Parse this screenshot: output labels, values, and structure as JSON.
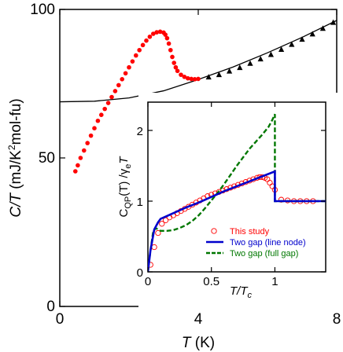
{
  "chart_data": [
    {
      "type": "scatter",
      "xlabel": {
        "main": "T",
        "unit": " (K)"
      },
      "ylabel": {
        "main": "C/T",
        "unit_pre": " (mJ/K",
        "unit_sup": "2",
        "unit_post": "mol-fu)"
      },
      "xlim": [
        0,
        8
      ],
      "ylim": [
        0,
        100
      ],
      "x_ticks": [
        0,
        4,
        8
      ],
      "y_ticks": [
        0,
        50,
        100
      ],
      "x_tick_labels": [
        "0",
        "4",
        "8"
      ],
      "y_tick_labels": [
        "0",
        "50",
        "100"
      ],
      "grid": false,
      "series": [
        {
          "marker": "circle-filled",
          "color": "#ff0000",
          "x": [
            0.45,
            0.52,
            0.6,
            0.7,
            0.8,
            0.9,
            1.0,
            1.1,
            1.2,
            1.3,
            1.4,
            1.5,
            1.6,
            1.7,
            1.8,
            1.9,
            2.0,
            2.1,
            2.2,
            2.3,
            2.4,
            2.5,
            2.6,
            2.7,
            2.8,
            2.9,
            3.0,
            3.05,
            3.1,
            3.15,
            3.2,
            3.25,
            3.3,
            3.35,
            3.4,
            3.5,
            3.6,
            3.7,
            3.8,
            3.9,
            4.0
          ],
          "y": [
            45.5,
            47.5,
            50,
            52.5,
            55,
            57.5,
            60,
            62.5,
            64.5,
            66.5,
            68.5,
            70.5,
            72.5,
            74.5,
            76.5,
            78.5,
            80.5,
            82.5,
            84.5,
            86.3,
            88,
            89.5,
            90.8,
            91.8,
            92.3,
            92.5,
            92.2,
            91.5,
            90.3,
            88.5,
            86.3,
            84,
            82,
            80.5,
            79.3,
            78,
            77.3,
            76.8,
            76.6,
            76.5,
            76.6
          ]
        },
        {
          "marker": "triangle-filled",
          "color": "#000000",
          "x": [
            4.3,
            4.6,
            4.9,
            5.2,
            5.5,
            5.8,
            6.1,
            6.4,
            6.7,
            7.0,
            7.3,
            7.6,
            7.9
          ],
          "y": [
            77.2,
            78,
            79.2,
            80.4,
            81.8,
            83.3,
            84.8,
            86.5,
            88.2,
            89.9,
            91.7,
            93.6,
            95.6
          ]
        },
        {
          "type": "line",
          "color": "#000000",
          "x": [
            0,
            1,
            2,
            3,
            4,
            5,
            6,
            7,
            8
          ],
          "y": [
            68.9,
            69.1,
            70.2,
            72.6,
            76.4,
            80.6,
            85.4,
            90.6,
            96.3
          ]
        }
      ]
    },
    {
      "type": "line",
      "xlabel": {
        "main": "T/T",
        "sub": "c"
      },
      "ylabel": {
        "pre": "C",
        "sub1": "QP",
        "mid": "(T) /γ",
        "sub2": "e",
        "post": "T"
      },
      "xlim": [
        0,
        1.4
      ],
      "ylim": [
        0,
        2.4
      ],
      "x_ticks": [
        0,
        0.5,
        1
      ],
      "y_ticks": [
        0,
        1,
        2
      ],
      "x_tick_labels": [
        "0",
        "0.5",
        "1"
      ],
      "y_tick_labels": [
        "0",
        "1",
        "2"
      ],
      "legend": {
        "placement": "bottom-right",
        "entries": [
          {
            "label": "This study",
            "color": "#ff0000",
            "style": "open-circle"
          },
          {
            "label": "Two gap (line node)",
            "color": "#0000cc",
            "style": "solid"
          },
          {
            "label": "Two gap (full gap)",
            "color": "#007700",
            "style": "dashed"
          }
        ]
      },
      "series": [
        {
          "style": "open-circle",
          "color": "#ff0000",
          "x": [
            0.02,
            0.05,
            0.08,
            0.11,
            0.14,
            0.17,
            0.2,
            0.23,
            0.26,
            0.29,
            0.32,
            0.35,
            0.38,
            0.41,
            0.44,
            0.47,
            0.5,
            0.53,
            0.56,
            0.59,
            0.62,
            0.65,
            0.68,
            0.71,
            0.74,
            0.77,
            0.8,
            0.83,
            0.86,
            0.88,
            0.9,
            0.92,
            0.94,
            0.96,
            0.98,
            1.0,
            1.05,
            1.1,
            1.15,
            1.2,
            1.25,
            1.3
          ],
          "y": [
            0.1,
            0.35,
            0.55,
            0.68,
            0.73,
            0.77,
            0.8,
            0.83,
            0.86,
            0.89,
            0.92,
            0.95,
            0.98,
            1.01,
            1.04,
            1.07,
            1.09,
            1.11,
            1.13,
            1.15,
            1.17,
            1.19,
            1.21,
            1.23,
            1.25,
            1.27,
            1.29,
            1.31,
            1.33,
            1.34,
            1.34,
            1.33,
            1.31,
            1.26,
            1.21,
            1.16,
            1.02,
            1.01,
            1.0,
            1.0,
            1.0,
            1.0
          ]
        },
        {
          "style": "solid",
          "color": "#0000cc",
          "x": [
            0,
            0.02,
            0.05,
            0.08,
            0.1,
            0.15,
            0.2,
            0.3,
            0.4,
            0.5,
            0.6,
            0.7,
            0.8,
            0.9,
            1.0,
            1.0,
            1.1,
            1.2,
            1.3,
            1.4
          ],
          "y": [
            0,
            0.3,
            0.6,
            0.7,
            0.75,
            0.79,
            0.83,
            0.91,
            0.98,
            1.06,
            1.14,
            1.21,
            1.28,
            1.35,
            1.42,
            1.0,
            1.0,
            1.0,
            1.0,
            1.0
          ]
        },
        {
          "style": "dashed",
          "color": "#007700",
          "x": [
            0,
            0.02,
            0.04,
            0.06,
            0.08,
            0.1,
            0.15,
            0.2,
            0.25,
            0.3,
            0.35,
            0.4,
            0.45,
            0.5,
            0.55,
            0.6,
            0.65,
            0.7,
            0.75,
            0.8,
            0.85,
            0.9,
            0.95,
            0.98,
            1.0,
            1.0,
            1.1,
            1.2,
            1.3,
            1.4
          ],
          "y": [
            0,
            0.3,
            0.55,
            0.62,
            0.6,
            0.58,
            0.58,
            0.59,
            0.62,
            0.66,
            0.72,
            0.8,
            0.9,
            1.01,
            1.12,
            1.24,
            1.37,
            1.5,
            1.62,
            1.74,
            1.84,
            1.94,
            2.05,
            2.15,
            2.23,
            1.0,
            1.0,
            1.0,
            1.0,
            1.0
          ]
        }
      ]
    }
  ]
}
